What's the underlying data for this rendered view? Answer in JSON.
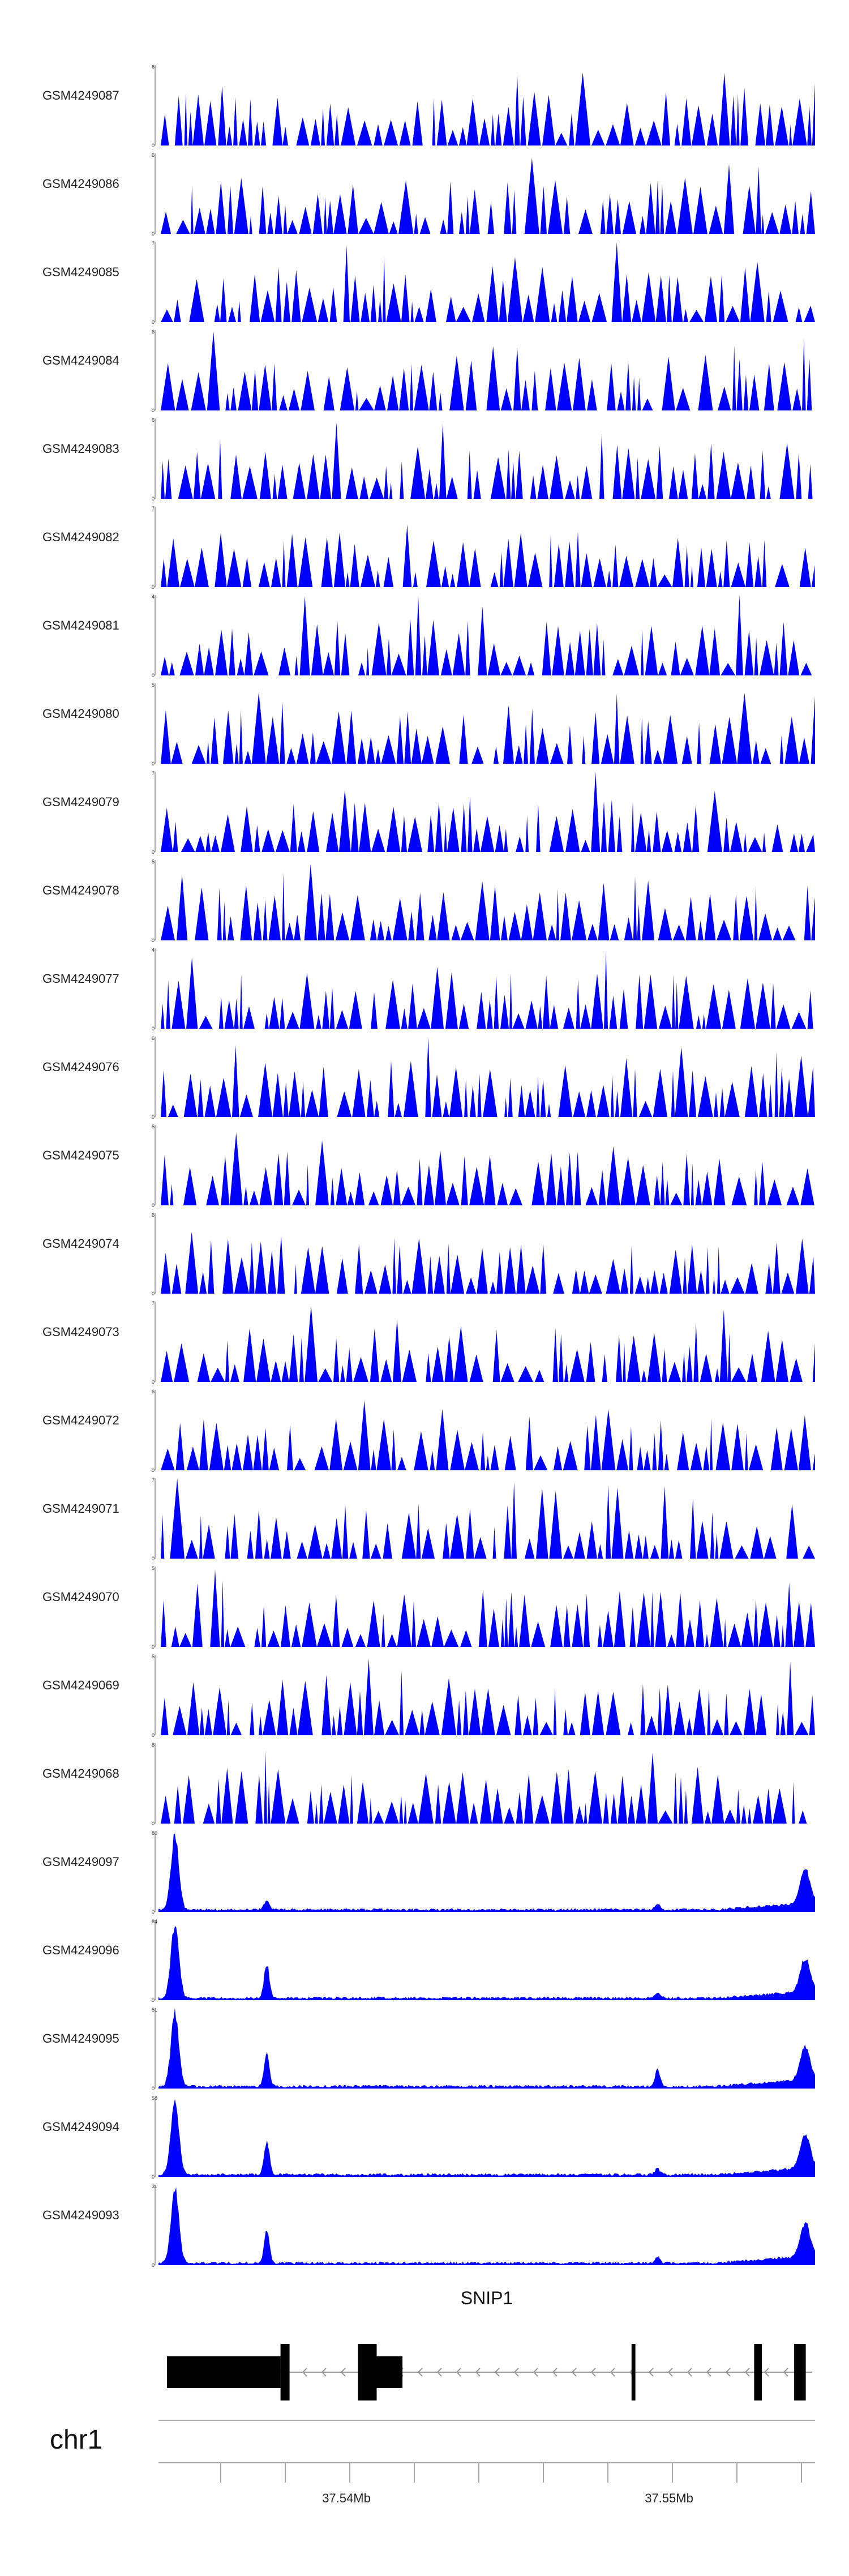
{
  "chart_data": {
    "type": "area",
    "series_color": "#0000ff",
    "positions": [
      "37.54Mb",
      "37.55Mb"
    ],
    "tracks": [
      {
        "name": "GSM4249087",
        "ymax": 6,
        "profile": "sparse",
        "seed": 87
      },
      {
        "name": "GSM4249086",
        "ymax": 6,
        "profile": "sparse",
        "seed": 86
      },
      {
        "name": "GSM4249085",
        "ymax": 7,
        "profile": "sparse",
        "seed": 85
      },
      {
        "name": "GSM4249084",
        "ymax": 6,
        "profile": "sparse",
        "seed": 84
      },
      {
        "name": "GSM4249083",
        "ymax": 6,
        "profile": "sparse",
        "seed": 83
      },
      {
        "name": "GSM4249082",
        "ymax": 7,
        "profile": "sparse",
        "seed": 82
      },
      {
        "name": "GSM4249081",
        "ymax": 4,
        "profile": "sparse",
        "seed": 81
      },
      {
        "name": "GSM4249080",
        "ymax": 5,
        "profile": "sparse",
        "seed": 80
      },
      {
        "name": "GSM4249079",
        "ymax": 7,
        "profile": "sparse",
        "seed": 79
      },
      {
        "name": "GSM4249078",
        "ymax": 5,
        "profile": "sparse",
        "seed": 78
      },
      {
        "name": "GSM4249077",
        "ymax": 4,
        "profile": "sparse",
        "seed": 77
      },
      {
        "name": "GSM4249076",
        "ymax": 6,
        "profile": "sparse",
        "seed": 76
      },
      {
        "name": "GSM4249075",
        "ymax": 5,
        "profile": "sparse",
        "seed": 75
      },
      {
        "name": "GSM4249074",
        "ymax": 6,
        "profile": "sparse",
        "seed": 74
      },
      {
        "name": "GSM4249073",
        "ymax": 7,
        "profile": "sparse",
        "seed": 73
      },
      {
        "name": "GSM4249072",
        "ymax": 6,
        "profile": "sparse",
        "seed": 72
      },
      {
        "name": "GSM4249071",
        "ymax": 7,
        "profile": "sparse",
        "seed": 71
      },
      {
        "name": "GSM4249070",
        "ymax": 5,
        "profile": "sparse",
        "seed": 70
      },
      {
        "name": "GSM4249069",
        "ymax": 5,
        "profile": "sparse",
        "seed": 69
      },
      {
        "name": "GSM4249068",
        "ymax": 8,
        "profile": "sparse",
        "seed": 68
      },
      {
        "name": "GSM4249097",
        "ymax": 80,
        "profile": "peaks",
        "seed": 97
      },
      {
        "name": "GSM4249096",
        "ymax": 84,
        "profile": "peaks",
        "seed": 96
      },
      {
        "name": "GSM4249095",
        "ymax": 51,
        "profile": "peaks",
        "seed": 95
      },
      {
        "name": "GSM4249094",
        "ymax": 58,
        "profile": "peaks",
        "seed": 94
      },
      {
        "name": "GSM4249093",
        "ymax": 31,
        "profile": "peaks",
        "seed": 93
      }
    ],
    "gene": {
      "name": "SNIP1",
      "strand": "-",
      "exons": [
        {
          "start": 0.0,
          "end": 0.176,
          "height": "thick"
        },
        {
          "start": 0.176,
          "end": 0.19,
          "height": "utr"
        },
        {
          "start": 0.296,
          "end": 0.325,
          "height": "utr"
        },
        {
          "start": 0.325,
          "end": 0.365,
          "height": "thick"
        },
        {
          "start": 0.72,
          "end": 0.726,
          "height": "utr"
        },
        {
          "start": 0.91,
          "end": 0.922,
          "height": "utr"
        },
        {
          "start": 0.972,
          "end": 0.99,
          "height": "utr"
        }
      ]
    },
    "chromosome": "chr1"
  }
}
